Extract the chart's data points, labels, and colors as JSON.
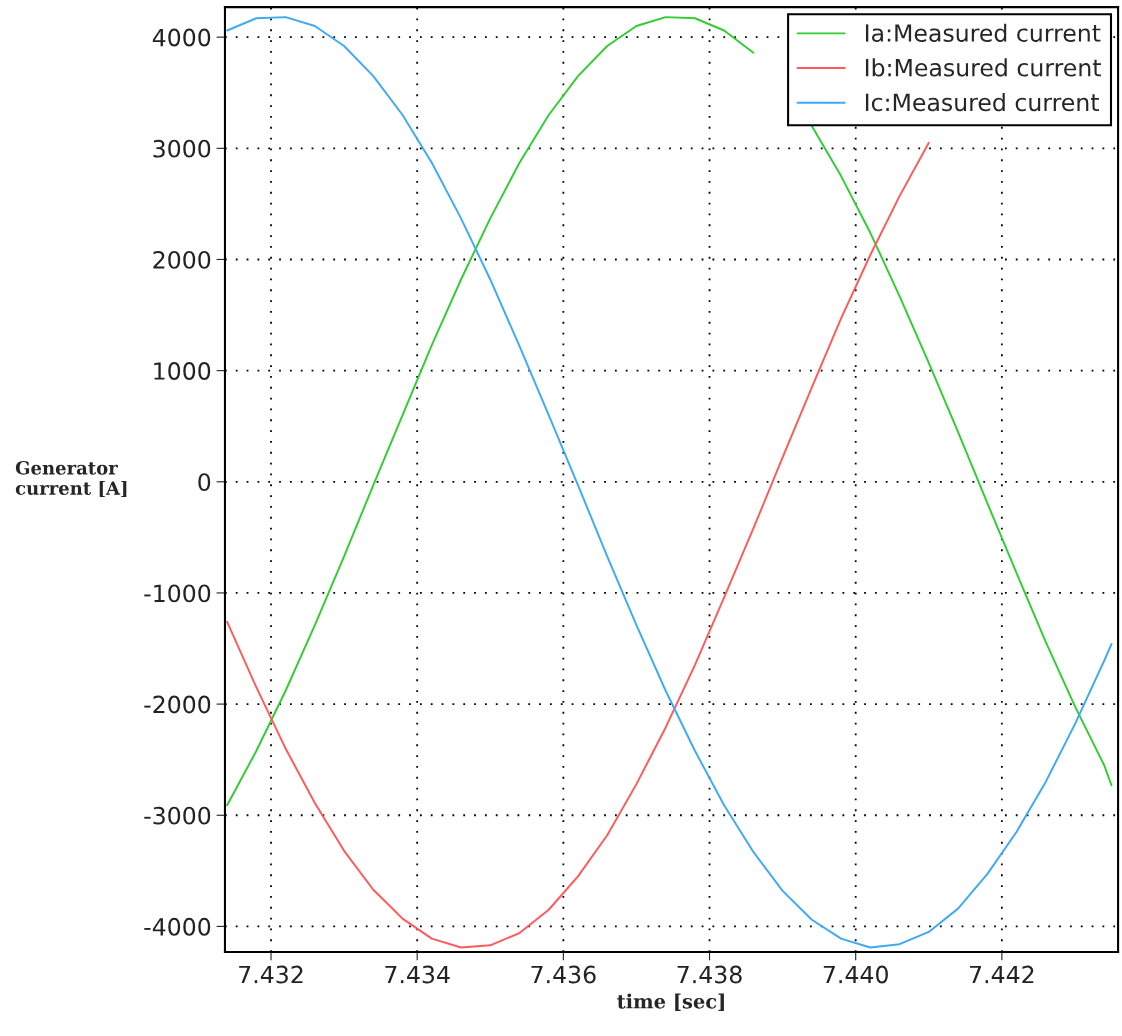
{
  "chart_data": {
    "type": "line",
    "xlabel": "time [sec]",
    "ylabel": "Generator\ncurrent [A]",
    "x": [
      7.4314,
      7.4318,
      7.4322,
      7.4326,
      7.433,
      7.4334,
      7.4338,
      7.4342,
      7.4346,
      7.435,
      7.4354,
      7.4358,
      7.4362,
      7.4366,
      7.437,
      7.4374,
      7.4378,
      7.4382,
      7.4386,
      7.439,
      7.4394,
      7.4398,
      7.4402,
      7.4406,
      7.441,
      7.4414,
      7.4418,
      7.4422,
      7.4426,
      7.443,
      7.4434,
      7.4435
    ],
    "series": [
      {
        "name": "Ia:Measured current",
        "color": "#33cc33",
        "values": [
          -2910,
          -2420,
          -1880,
          -1290,
          -670,
          -30,
          600,
          1230,
          1820,
          2370,
          2870,
          3300,
          3650,
          3920,
          4100,
          4180,
          4170,
          4060,
          3860,
          null,
          3200,
          2750,
          2240,
          1670,
          1070,
          450,
          -190,
          -820,
          -1440,
          -2020,
          -2550,
          -2730
        ]
      },
      {
        "name": "Ib:Measured current",
        "color": "#ff5a5a",
        "values": [
          -1260,
          -1850,
          -2400,
          -2890,
          -3320,
          -3670,
          -3930,
          -4110,
          -4190,
          -4170,
          -4060,
          -3850,
          -3550,
          -3180,
          -2720,
          -2210,
          -1650,
          -1040,
          -420,
          220,
          850,
          1470,
          2040,
          2570,
          3050,
          null,
          null,
          null,
          null,
          null,
          null,
          null
        ]
      },
      {
        "name": "Ic:Measured current",
        "color": "#3fa9f5",
        "values": [
          4060,
          4170,
          4180,
          4100,
          3920,
          3650,
          3300,
          2870,
          2370,
          1820,
          1220,
          600,
          -30,
          -670,
          -1290,
          -1880,
          -2420,
          -2910,
          -3330,
          -3680,
          -3940,
          -4110,
          -4190,
          -4160,
          -4050,
          -3840,
          -3530,
          -3150,
          -2700,
          -2180,
          -1610,
          -1460
        ]
      }
    ],
    "xlim": [
      7.43137,
      7.44359
    ],
    "ylim": [
      -4230,
      4270
    ],
    "xticks": [
      7.432,
      7.434,
      7.436,
      7.438,
      {
        "value": 7.44,
        "label": "7.440"
      },
      7.442
    ],
    "yticks": [
      -4000,
      -3000,
      -2000,
      -1000,
      0,
      1000,
      2000,
      3000,
      4000
    ],
    "grid": true,
    "legend": "top right",
    "line_style": "solid",
    "marker": "none"
  }
}
